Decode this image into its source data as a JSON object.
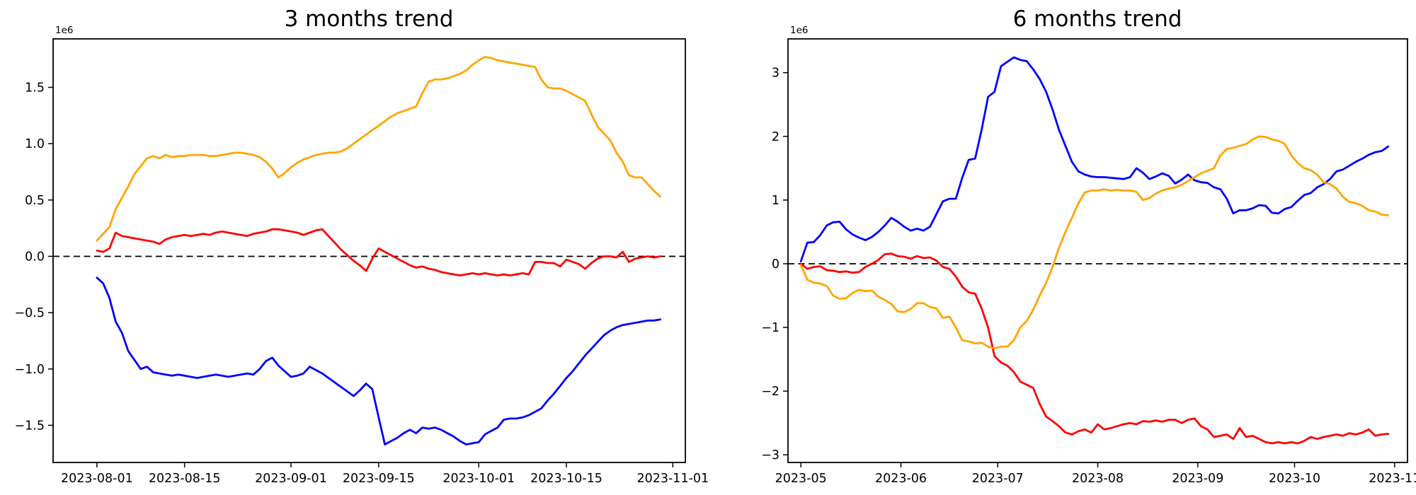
{
  "figure": {
    "background": "#ffffff"
  },
  "chart_data": [
    {
      "type": "line",
      "title": "3 months trend",
      "offset_label": "1e6",
      "x_tick_labels": [
        "2023-08-01",
        "2023-08-15",
        "2023-09-01",
        "2023-09-15",
        "2023-10-01",
        "2023-10-15",
        "2023-11-01"
      ],
      "x_tick_days": [
        0,
        14,
        31,
        45,
        61,
        75,
        92
      ],
      "xlim_days": [
        -7,
        94
      ],
      "x_step_days": 1,
      "ylim": [
        -1.83,
        1.93
      ],
      "y_ticks": [
        1.5,
        1.0,
        0.5,
        0.0,
        -0.5,
        -1.0,
        -1.5
      ],
      "y_tick_labels": [
        "1.5",
        "1.0",
        "0.5",
        "0.0",
        "−0.5",
        "−1.0",
        "−1.5"
      ],
      "zero_line": true,
      "grid": false,
      "legend": "none",
      "series": [
        {
          "name": "blue",
          "color": "#0000ff",
          "values": [
            -0.19,
            -0.24,
            -0.37,
            -0.58,
            -0.68,
            -0.84,
            -0.92,
            -1.0,
            -0.98,
            -1.03,
            -1.04,
            -1.05,
            -1.06,
            -1.05,
            -1.06,
            -1.07,
            -1.08,
            -1.07,
            -1.06,
            -1.05,
            -1.06,
            -1.07,
            -1.06,
            -1.05,
            -1.04,
            -1.05,
            -1.0,
            -0.93,
            -0.9,
            -0.97,
            -1.02,
            -1.07,
            -1.06,
            -1.04,
            -0.98,
            -1.01,
            -1.04,
            -1.08,
            -1.12,
            -1.16,
            -1.2,
            -1.24,
            -1.19,
            -1.13,
            -1.18,
            -1.43,
            -1.67,
            -1.64,
            -1.61,
            -1.57,
            -1.54,
            -1.57,
            -1.52,
            -1.53,
            -1.52,
            -1.54,
            -1.57,
            -1.6,
            -1.64,
            -1.67,
            -1.66,
            -1.65,
            -1.58,
            -1.55,
            -1.52,
            -1.45,
            -1.44,
            -1.44,
            -1.43,
            -1.41,
            -1.38,
            -1.35,
            -1.28,
            -1.22,
            -1.15,
            -1.08,
            -1.02,
            -0.95,
            -0.88,
            -0.82,
            -0.76,
            -0.7,
            -0.66,
            -0.63,
            -0.61,
            -0.6,
            -0.59,
            -0.58,
            -0.57,
            -0.57,
            -0.56
          ]
        },
        {
          "name": "red",
          "color": "#ff0000",
          "values": [
            0.05,
            0.04,
            0.07,
            0.21,
            0.18,
            0.17,
            0.16,
            0.15,
            0.14,
            0.13,
            0.11,
            0.15,
            0.17,
            0.18,
            0.19,
            0.18,
            0.19,
            0.2,
            0.19,
            0.21,
            0.22,
            0.21,
            0.2,
            0.19,
            0.18,
            0.2,
            0.21,
            0.22,
            0.24,
            0.24,
            0.23,
            0.22,
            0.21,
            0.19,
            0.21,
            0.23,
            0.24,
            0.18,
            0.12,
            0.06,
            0.01,
            -0.04,
            -0.08,
            -0.13,
            -0.02,
            0.07,
            0.04,
            0.01,
            -0.02,
            -0.05,
            -0.08,
            -0.1,
            -0.09,
            -0.11,
            -0.12,
            -0.14,
            -0.15,
            -0.16,
            -0.17,
            -0.16,
            -0.15,
            -0.16,
            -0.15,
            -0.16,
            -0.17,
            -0.16,
            -0.17,
            -0.16,
            -0.15,
            -0.16,
            -0.05,
            -0.05,
            -0.06,
            -0.06,
            -0.09,
            -0.03,
            -0.05,
            -0.07,
            -0.11,
            -0.06,
            -0.02,
            0.0,
            0.0,
            -0.01,
            0.04,
            -0.05,
            -0.02,
            -0.01,
            0.0,
            -0.01,
            0.0
          ]
        },
        {
          "name": "orange",
          "color": "#ffa500",
          "values": [
            0.14,
            0.2,
            0.26,
            0.42,
            0.52,
            0.62,
            0.73,
            0.8,
            0.87,
            0.89,
            0.87,
            0.9,
            0.88,
            0.89,
            0.89,
            0.9,
            0.9,
            0.9,
            0.89,
            0.89,
            0.9,
            0.91,
            0.92,
            0.92,
            0.91,
            0.9,
            0.88,
            0.84,
            0.78,
            0.7,
            0.74,
            0.79,
            0.83,
            0.86,
            0.88,
            0.9,
            0.91,
            0.92,
            0.92,
            0.93,
            0.96,
            1.0,
            1.04,
            1.08,
            1.12,
            1.16,
            1.2,
            1.24,
            1.27,
            1.29,
            1.31,
            1.33,
            1.45,
            1.55,
            1.57,
            1.57,
            1.58,
            1.6,
            1.62,
            1.65,
            1.7,
            1.74,
            1.77,
            1.76,
            1.74,
            1.73,
            1.72,
            1.71,
            1.7,
            1.69,
            1.68,
            1.57,
            1.5,
            1.49,
            1.49,
            1.47,
            1.44,
            1.41,
            1.38,
            1.26,
            1.15,
            1.09,
            1.03,
            0.92,
            0.84,
            0.72,
            0.7,
            0.7,
            0.64,
            0.58,
            0.53
          ]
        }
      ]
    },
    {
      "type": "line",
      "title": "6 months trend",
      "offset_label": "1e6",
      "x_tick_labels": [
        "2023-05",
        "2023-06",
        "2023-07",
        "2023-08",
        "2023-09",
        "2023-10",
        "2023-11"
      ],
      "x_tick_days": [
        0,
        31,
        61,
        92,
        123,
        153,
        184
      ],
      "xlim_days": [
        -4,
        188
      ],
      "x_step_days": 2,
      "ylim": [
        -3.12,
        3.53
      ],
      "y_ticks": [
        3,
        2,
        1,
        0,
        -1,
        -2,
        -3
      ],
      "y_tick_labels": [
        "3",
        "2",
        "1",
        "0",
        "−1",
        "−2",
        "−3"
      ],
      "zero_line": true,
      "grid": false,
      "legend": "none",
      "series": [
        {
          "name": "blue",
          "color": "#0000ff",
          "values": [
            0.04,
            0.33,
            0.34,
            0.45,
            0.6,
            0.65,
            0.66,
            0.54,
            0.46,
            0.41,
            0.37,
            0.42,
            0.5,
            0.6,
            0.72,
            0.66,
            0.58,
            0.52,
            0.55,
            0.52,
            0.58,
            0.78,
            0.98,
            1.02,
            1.02,
            1.35,
            1.63,
            1.65,
            2.1,
            2.62,
            2.7,
            3.1,
            3.17,
            3.24,
            3.2,
            3.18,
            3.05,
            2.9,
            2.7,
            2.42,
            2.1,
            1.85,
            1.6,
            1.45,
            1.4,
            1.37,
            1.36,
            1.36,
            1.35,
            1.34,
            1.33,
            1.36,
            1.5,
            1.43,
            1.33,
            1.37,
            1.42,
            1.38,
            1.26,
            1.32,
            1.4,
            1.31,
            1.28,
            1.27,
            1.2,
            1.17,
            1.02,
            0.79,
            0.84,
            0.84,
            0.87,
            0.92,
            0.91,
            0.8,
            0.79,
            0.86,
            0.89,
            0.99,
            1.08,
            1.11,
            1.2,
            1.25,
            1.33,
            1.45,
            1.48,
            1.54,
            1.6,
            1.65,
            1.71,
            1.75,
            1.77,
            1.84
          ]
        },
        {
          "name": "red",
          "color": "#ff0000",
          "values": [
            0.0,
            -0.08,
            -0.05,
            -0.04,
            -0.1,
            -0.11,
            -0.13,
            -0.12,
            -0.14,
            -0.13,
            -0.05,
            0.0,
            0.06,
            0.15,
            0.16,
            0.12,
            0.11,
            0.08,
            0.12,
            0.09,
            0.1,
            0.05,
            -0.05,
            -0.08,
            -0.2,
            -0.36,
            -0.45,
            -0.47,
            -0.7,
            -1.0,
            -1.45,
            -1.55,
            -1.6,
            -1.7,
            -1.85,
            -1.9,
            -1.95,
            -2.2,
            -2.4,
            -2.47,
            -2.55,
            -2.65,
            -2.68,
            -2.63,
            -2.6,
            -2.65,
            -2.52,
            -2.6,
            -2.58,
            -2.55,
            -2.52,
            -2.5,
            -2.52,
            -2.47,
            -2.48,
            -2.46,
            -2.48,
            -2.45,
            -2.45,
            -2.5,
            -2.45,
            -2.43,
            -2.55,
            -2.6,
            -2.72,
            -2.7,
            -2.68,
            -2.75,
            -2.58,
            -2.72,
            -2.7,
            -2.75,
            -2.8,
            -2.82,
            -2.8,
            -2.82,
            -2.8,
            -2.82,
            -2.78,
            -2.72,
            -2.75,
            -2.72,
            -2.7,
            -2.68,
            -2.7,
            -2.66,
            -2.68,
            -2.65,
            -2.6,
            -2.7,
            -2.68,
            -2.67
          ]
        },
        {
          "name": "orange",
          "color": "#ffa500",
          "values": [
            -0.02,
            -0.25,
            -0.3,
            -0.31,
            -0.35,
            -0.5,
            -0.55,
            -0.54,
            -0.46,
            -0.41,
            -0.43,
            -0.42,
            -0.52,
            -0.57,
            -0.63,
            -0.75,
            -0.76,
            -0.71,
            -0.62,
            -0.62,
            -0.68,
            -0.7,
            -0.85,
            -0.83,
            -1.0,
            -1.2,
            -1.22,
            -1.25,
            -1.24,
            -1.3,
            -1.33,
            -1.3,
            -1.3,
            -1.2,
            -1.0,
            -0.9,
            -0.72,
            -0.5,
            -0.3,
            -0.05,
            0.25,
            0.5,
            0.72,
            0.95,
            1.12,
            1.15,
            1.15,
            1.17,
            1.15,
            1.16,
            1.15,
            1.15,
            1.13,
            1.0,
            1.03,
            1.1,
            1.15,
            1.18,
            1.2,
            1.24,
            1.3,
            1.36,
            1.42,
            1.46,
            1.5,
            1.7,
            1.8,
            1.82,
            1.85,
            1.88,
            1.95,
            2.0,
            1.99,
            1.95,
            1.93,
            1.88,
            1.7,
            1.58,
            1.5,
            1.47,
            1.4,
            1.28,
            1.25,
            1.18,
            1.05,
            0.97,
            0.95,
            0.91,
            0.84,
            0.82,
            0.77,
            0.76
          ]
        }
      ]
    }
  ],
  "style": {
    "axis_color": "#000000",
    "zero_line_color": "#000000",
    "tick_label_color": "#000000",
    "title_color": "#000000"
  }
}
